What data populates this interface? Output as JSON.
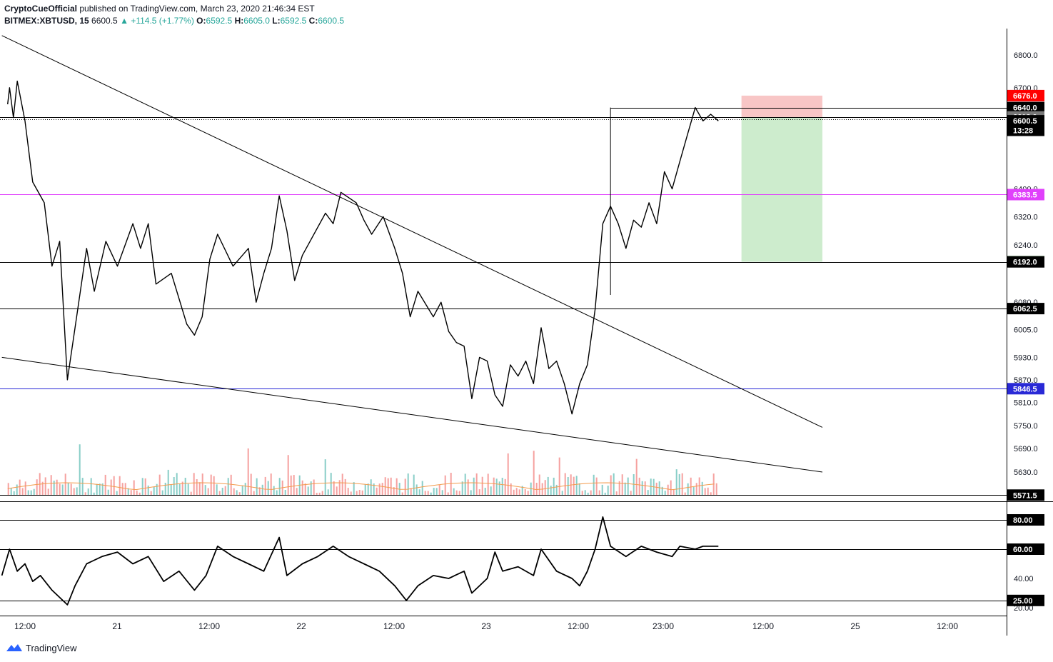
{
  "header": {
    "author": "CryptoCueOfficial",
    "published": "published on TradingView.com, March 23, 2020 21:46:34 EST",
    "symbol": "BITMEX:XBTUSD, 15",
    "last": "6600.5",
    "change": "+114.5 (+1.77%)",
    "o_label": "O:",
    "o": "6592.5",
    "h_label": "H:",
    "h": "6605.0",
    "l_label": "L:",
    "l": "6592.5",
    "c_label": "C:",
    "c": "6600.5"
  },
  "footer": {
    "brand": "TradingView",
    "logo_icon": "tradingview-logo-icon"
  },
  "colors": {
    "up": "#26a69a",
    "down": "#ef5350",
    "magenta": "#e040fb",
    "blue": "#2929d6",
    "stop_zone": "#f8c6c6",
    "target_zone": "#cdeccd",
    "ma": "#f39b4c"
  },
  "chart_data": [
    {
      "type": "line",
      "title": "BITMEX:XBTUSD, 15",
      "y_scale": "log",
      "ylim": [
        5550,
        6860
      ],
      "y_ticks": [
        "6800.0",
        "6700.0",
        "6400.0",
        "6320.0",
        "6240.0",
        "6080.0",
        "6005.0",
        "5930.0",
        "5870.0",
        "5810.0",
        "5750.0",
        "5690.0",
        "5630.0"
      ],
      "x_ticks": [
        "12:00",
        "21",
        "12:00",
        "22",
        "12:00",
        "23",
        "12:00",
        "23:00",
        "12:00",
        "25",
        "12:00"
      ],
      "price_path": [
        [
          "20 09:45",
          6650
        ],
        [
          "20 10:00",
          6700
        ],
        [
          "20 10:30",
          6610
        ],
        [
          "20 11:00",
          6720
        ],
        [
          "20 12:00",
          6600
        ],
        [
          "20 13:00",
          6420
        ],
        [
          "20 14:30",
          6360
        ],
        [
          "20 15:30",
          6180
        ],
        [
          "20 16:30",
          6250
        ],
        [
          "20 17:30",
          5870
        ],
        [
          "20 18:30",
          6010
        ],
        [
          "20 20:00",
          6230
        ],
        [
          "20 21:00",
          6110
        ],
        [
          "20 22:30",
          6250
        ],
        [
          "21 00:00",
          6180
        ],
        [
          "21 02:00",
          6300
        ],
        [
          "21 03:00",
          6230
        ],
        [
          "21 04:00",
          6300
        ],
        [
          "21 05:00",
          6130
        ],
        [
          "21 07:00",
          6160
        ],
        [
          "21 09:00",
          6020
        ],
        [
          "21 10:00",
          5990
        ],
        [
          "21 11:00",
          6040
        ],
        [
          "21 12:00",
          6200
        ],
        [
          "21 13:00",
          6270
        ],
        [
          "21 15:00",
          6180
        ],
        [
          "21 17:00",
          6230
        ],
        [
          "21 18:00",
          6080
        ],
        [
          "21 19:00",
          6160
        ],
        [
          "21 20:00",
          6230
        ],
        [
          "21 21:00",
          6380
        ],
        [
          "21 22:00",
          6280
        ],
        [
          "21 23:00",
          6140
        ],
        [
          "22 00:00",
          6210
        ],
        [
          "22 01:00",
          6250
        ],
        [
          "22 03:00",
          6330
        ],
        [
          "22 04:00",
          6300
        ],
        [
          "22 05:00",
          6390
        ],
        [
          "22 07:00",
          6360
        ],
        [
          "22 08:00",
          6310
        ],
        [
          "22 09:00",
          6270
        ],
        [
          "22 10:30",
          6320
        ],
        [
          "22 12:00",
          6230
        ],
        [
          "22 13:00",
          6160
        ],
        [
          "22 14:00",
          6040
        ],
        [
          "22 15:00",
          6110
        ],
        [
          "22 17:00",
          6040
        ],
        [
          "22 18:00",
          6080
        ],
        [
          "22 19:00",
          6000
        ],
        [
          "22 20:00",
          5970
        ],
        [
          "22 21:00",
          5960
        ],
        [
          "22 22:00",
          5820
        ],
        [
          "22 23:00",
          5930
        ],
        [
          "23 00:00",
          5920
        ],
        [
          "23 01:00",
          5830
        ],
        [
          "23 02:00",
          5800
        ],
        [
          "23 03:00",
          5910
        ],
        [
          "23 04:00",
          5880
        ],
        [
          "23 05:00",
          5920
        ],
        [
          "23 06:00",
          5860
        ],
        [
          "23 07:00",
          6010
        ],
        [
          "23 08:00",
          5900
        ],
        [
          "23 09:00",
          5920
        ],
        [
          "23 10:00",
          5860
        ],
        [
          "23 11:00",
          5780
        ],
        [
          "23 12:00",
          5860
        ],
        [
          "23 13:00",
          5910
        ],
        [
          "23 14:00",
          6060
        ],
        [
          "23 15:00",
          6300
        ],
        [
          "23 16:00",
          6350
        ],
        [
          "23 17:00",
          6300
        ],
        [
          "23 18:00",
          6230
        ],
        [
          "23 19:00",
          6310
        ],
        [
          "23 20:00",
          6290
        ],
        [
          "23 21:00",
          6360
        ],
        [
          "23 22:00",
          6300
        ],
        [
          "23 23:00",
          6450
        ],
        [
          "24 00:00",
          6400
        ],
        [
          "24 01:00",
          6480
        ],
        [
          "24 02:00",
          6560
        ],
        [
          "24 03:00",
          6640
        ],
        [
          "24 04:00",
          6600
        ],
        [
          "24 05:00",
          6620
        ],
        [
          "24 06:00",
          6600
        ]
      ],
      "horizontal_levels": [
        {
          "name": "stop",
          "value": "6676.0",
          "price": 6676.0,
          "color": "#ff0000",
          "label_bg": "#ff0000"
        },
        {
          "name": "level-6640",
          "value": "6640.0",
          "price": 6640.0,
          "color": "#000000",
          "label_bg": "#000000"
        },
        {
          "name": "entry",
          "value": "6611.5",
          "price": 6611.5,
          "color": "#000000",
          "label_bg": "#000000"
        },
        {
          "name": "last-price",
          "value": "6612.0",
          "price": 6612.0,
          "color": "#555555",
          "label_bg": "#787878"
        },
        {
          "name": "close-price",
          "value": "6600.5",
          "price": 6600.5,
          "color": "#000000",
          "label_bg": "#000000"
        },
        {
          "name": "countdown",
          "value": "13:28",
          "price": 6572.0,
          "color": "#000000",
          "label_bg": "#000000"
        },
        {
          "name": "magenta-level",
          "value": "6383.5",
          "price": 6383.5,
          "color": "#e040fb",
          "label_bg": "#e040fb"
        },
        {
          "name": "target",
          "value": "6192.5",
          "price": 6192.5,
          "color": "#1e8f1e",
          "label_bg": "#1e8f1e"
        },
        {
          "name": "support-6192",
          "value": "6192.0",
          "price": 6192.0,
          "color": "#000000",
          "label_bg": "#000000"
        },
        {
          "name": "support-6062",
          "value": "6062.5",
          "price": 6062.5,
          "color": "#000000",
          "label_bg": "#000000"
        },
        {
          "name": "blue-level",
          "value": "5846.5",
          "price": 5846.5,
          "color": "#2929d6",
          "label_bg": "#2929d6"
        },
        {
          "name": "bottom-level",
          "value": "5571.5",
          "price": 5571.5,
          "color": "#000000",
          "label_bg": "#000000"
        }
      ],
      "position": {
        "entry": 6611.5,
        "stop": 6676.0,
        "target": 6192.5,
        "start": "24 09:00",
        "end": "24 19:30"
      },
      "trendlines": [
        {
          "name": "upper-trendline",
          "from": [
            "20 09:00",
            6860
          ],
          "to": [
            "24 19:30",
            5745
          ]
        },
        {
          "name": "lower-trendline",
          "from": [
            "20 09:00",
            5930
          ],
          "to": [
            "24 19:30",
            5630
          ]
        }
      ]
    },
    {
      "type": "line",
      "title": "RSI",
      "ylim": [
        18,
        90
      ],
      "y_ticks": [
        "80.00",
        "60.00",
        "40.00",
        "25.00",
        "20.00"
      ],
      "levels": [
        80,
        60,
        25
      ],
      "rsi_path": [
        [
          "20 09:00",
          42
        ],
        [
          "20 10:00",
          60
        ],
        [
          "20 11:00",
          45
        ],
        [
          "20 12:00",
          50
        ],
        [
          "20 13:00",
          38
        ],
        [
          "20 14:00",
          42
        ],
        [
          "20 15:30",
          32
        ],
        [
          "20 17:30",
          22
        ],
        [
          "20 18:30",
          35
        ],
        [
          "20 20:00",
          50
        ],
        [
          "20 22:00",
          55
        ],
        [
          "21 00:00",
          58
        ],
        [
          "21 02:00",
          50
        ],
        [
          "21 04:00",
          55
        ],
        [
          "21 06:00",
          38
        ],
        [
          "21 08:00",
          45
        ],
        [
          "21 10:00",
          32
        ],
        [
          "21 11:30",
          42
        ],
        [
          "21 13:00",
          62
        ],
        [
          "21 15:00",
          55
        ],
        [
          "21 17:00",
          50
        ],
        [
          "21 19:00",
          45
        ],
        [
          "21 21:00",
          68
        ],
        [
          "21 22:00",
          42
        ],
        [
          "22 00:00",
          50
        ],
        [
          "22 02:00",
          55
        ],
        [
          "22 04:00",
          62
        ],
        [
          "22 06:00",
          55
        ],
        [
          "22 08:00",
          50
        ],
        [
          "22 10:00",
          45
        ],
        [
          "22 12:00",
          35
        ],
        [
          "22 13:30",
          25
        ],
        [
          "22 15:00",
          35
        ],
        [
          "22 17:00",
          42
        ],
        [
          "22 19:00",
          40
        ],
        [
          "22 21:00",
          45
        ],
        [
          "22 22:00",
          30
        ],
        [
          "23 00:00",
          40
        ],
        [
          "23 01:00",
          58
        ],
        [
          "23 02:00",
          45
        ],
        [
          "23 04:00",
          48
        ],
        [
          "23 06:00",
          42
        ],
        [
          "23 07:00",
          60
        ],
        [
          "23 09:00",
          45
        ],
        [
          "23 11:00",
          40
        ],
        [
          "23 12:00",
          35
        ],
        [
          "23 13:00",
          45
        ],
        [
          "23 14:00",
          60
        ],
        [
          "23 15:00",
          82
        ],
        [
          "23 16:00",
          62
        ],
        [
          "23 18:00",
          55
        ],
        [
          "23 20:00",
          62
        ],
        [
          "23 22:00",
          58
        ],
        [
          "24 00:00",
          55
        ],
        [
          "24 01:00",
          62
        ],
        [
          "24 03:00",
          60
        ],
        [
          "24 04:00",
          62
        ],
        [
          "24 06:00",
          62
        ]
      ]
    }
  ]
}
